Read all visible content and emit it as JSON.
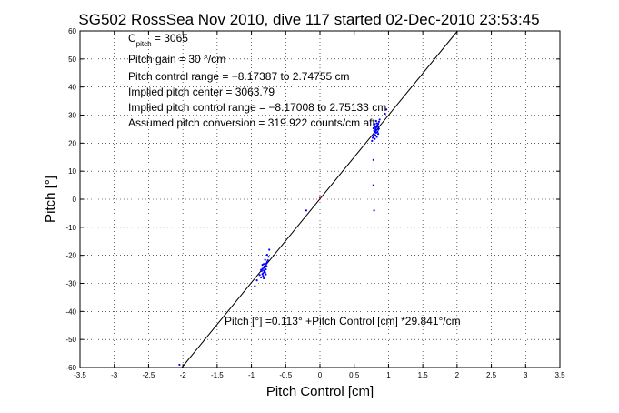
{
  "chart_data": {
    "type": "scatter",
    "title": "SG502 RossSea Nov 2010, dive 117 started 02-Dec-2010 23:53:45",
    "xlabel": "Pitch Control [cm]",
    "ylabel": "Pitch [°]",
    "xlim": [
      -3.5,
      3.5
    ],
    "ylim": [
      -60,
      60
    ],
    "xticks": [
      -3.5,
      -3,
      -2.5,
      -2,
      -1.5,
      -1,
      -0.5,
      0,
      0.5,
      1,
      1.5,
      2,
      2.5,
      3,
      3.5
    ],
    "yticks": [
      -60,
      -50,
      -40,
      -30,
      -20,
      -10,
      0,
      10,
      20,
      30,
      40,
      50,
      60
    ],
    "grid": "dotted",
    "annotations": {
      "c_pitch_main": "C",
      "c_pitch_sub": "pitch",
      "c_pitch_value": " = 3065",
      "pitch_gain": "Pitch gain = 30 °/cm",
      "pitch_control_range": "Pitch control range = −8.17387 to 2.74755 cm",
      "implied_center": "Implied pitch center = 3063.79",
      "implied_range": "Implied pitch control range = −8.17008 to 2.75133 cm",
      "assumed_conversion": "Assumed pitch conversion = 319.922 counts/cm aft",
      "fit_equation": "Pitch [°] =0.113° +Pitch Control [cm] *29.841°/cm"
    },
    "fit_line": {
      "intercept": 0.113,
      "slope": 29.841,
      "color": "#000000"
    },
    "series": [
      {
        "color": "#0000ff",
        "points": [
          [
            0.78,
            22.5
          ],
          [
            0.8,
            24.1
          ],
          [
            0.82,
            25.6
          ],
          [
            0.84,
            26.4
          ],
          [
            0.79,
            23.2
          ],
          [
            0.81,
            25.0
          ],
          [
            0.83,
            27.1
          ],
          [
            0.85,
            24.8
          ],
          [
            0.77,
            21.9
          ],
          [
            0.8,
            26.8
          ],
          [
            0.82,
            23.7
          ],
          [
            0.84,
            25.9
          ],
          [
            0.86,
            27.6
          ],
          [
            0.79,
            24.4
          ],
          [
            0.81,
            22.8
          ],
          [
            0.83,
            26.1
          ],
          [
            0.85,
            23.3
          ],
          [
            0.78,
            25.3
          ],
          [
            0.8,
            21.5
          ],
          [
            0.82,
            27.9
          ],
          [
            0.84,
            24.0
          ],
          [
            0.86,
            25.2
          ],
          [
            0.79,
            26.5
          ],
          [
            0.81,
            23.9
          ],
          [
            0.83,
            22.2
          ],
          [
            0.85,
            26.9
          ],
          [
            0.8,
            25.7
          ],
          [
            0.82,
            24.6
          ],
          [
            0.76,
            20.8
          ],
          [
            0.87,
            28.4
          ],
          [
            -0.78,
            -22.9
          ],
          [
            -0.8,
            -24.2
          ],
          [
            -0.82,
            -25.4
          ],
          [
            -0.84,
            -26.7
          ],
          [
            -0.79,
            -23.6
          ],
          [
            -0.81,
            -25.9
          ],
          [
            -0.83,
            -27.3
          ],
          [
            -0.76,
            -21.8
          ],
          [
            -0.8,
            -26.1
          ],
          [
            -0.82,
            -23.1
          ],
          [
            -0.84,
            -24.8
          ],
          [
            -0.86,
            -27.9
          ],
          [
            -0.79,
            -25.0
          ],
          [
            -0.77,
            -22.4
          ],
          [
            -0.81,
            -24.5
          ],
          [
            -0.83,
            -26.4
          ],
          [
            -0.85,
            -25.6
          ],
          [
            -0.78,
            -23.9
          ],
          [
            -0.8,
            -21.6
          ],
          [
            -0.82,
            -28.2
          ],
          [
            -0.75,
            -20.5
          ],
          [
            -0.84,
            -23.4
          ],
          [
            -0.79,
            -26.8
          ],
          [
            -0.81,
            -24.0
          ],
          [
            -0.86,
            -25.2
          ],
          [
            -0.88,
            -27.0
          ],
          [
            -0.77,
            -19.8
          ],
          [
            -0.74,
            -18.0
          ],
          [
            0.78,
            14.0
          ],
          [
            0.78,
            5.0
          ],
          [
            0.79,
            -4.0
          ],
          [
            0.95,
            30.5
          ],
          [
            0.97,
            32.0
          ],
          [
            -0.92,
            -28.9
          ],
          [
            -0.95,
            -31.0
          ],
          [
            -2.05,
            -59.0
          ],
          [
            -0.2,
            -4.0
          ]
        ]
      },
      {
        "color": "#ff0000",
        "points": [
          [
            0.0,
            0.5
          ]
        ]
      }
    ]
  }
}
